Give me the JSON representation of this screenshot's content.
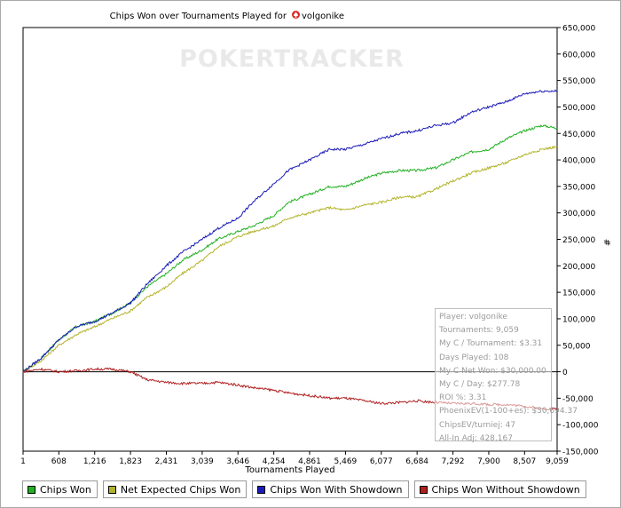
{
  "window": {
    "title_prefix": "Chips Won over Tournaments Played for",
    "player_name": "volgonike",
    "watermark": "POKERTRACKER"
  },
  "chart_data": {
    "type": "line",
    "title": "Chips Won over Tournaments Played for volgonike",
    "xlabel": "Tournaments Played",
    "ylabel": "#",
    "xlim": [
      1,
      9059
    ],
    "ylim": [
      -150000,
      650000
    ],
    "x_ticks": [
      1,
      608,
      1216,
      1823,
      2431,
      3039,
      3646,
      4254,
      4861,
      5469,
      6077,
      6684,
      7292,
      7900,
      8507,
      9059
    ],
    "x_tick_labels": [
      "1",
      "608",
      "1,216",
      "1,823",
      "2,431",
      "3,039",
      "3,646",
      "4,254",
      "4,861",
      "5,469",
      "6,077",
      "6,684",
      "7,292",
      "7,900",
      "8,507",
      "9,059"
    ],
    "y_ticks": [
      650000,
      600000,
      550000,
      500000,
      450000,
      400000,
      350000,
      300000,
      250000,
      200000,
      150000,
      100000,
      50000,
      0,
      -50000,
      -100000,
      -150000
    ],
    "y_tick_labels": [
      "650,000",
      "600,000",
      "550,000",
      "500,000",
      "450,000",
      "400,000",
      "350,000",
      "300,000",
      "250,000",
      "200,000",
      "150,000",
      "100,000",
      "50,000",
      "0",
      "-50,000",
      "-100,000",
      "-150,000"
    ],
    "x": [
      1,
      300,
      608,
      900,
      1216,
      1500,
      1823,
      2100,
      2431,
      2700,
      3039,
      3300,
      3646,
      3900,
      4254,
      4500,
      4861,
      5200,
      5469,
      5800,
      6077,
      6400,
      6684,
      7000,
      7292,
      7600,
      7900,
      8200,
      8507,
      8800,
      9059
    ],
    "series": [
      {
        "name": "Chips Won",
        "color": "#22b022",
        "values": [
          0,
          25000,
          60000,
          85000,
          95000,
          110000,
          130000,
          160000,
          185000,
          210000,
          230000,
          250000,
          265000,
          275000,
          295000,
          320000,
          335000,
          350000,
          350000,
          365000,
          375000,
          380000,
          380000,
          385000,
          400000,
          415000,
          420000,
          440000,
          455000,
          465000,
          460000
        ]
      },
      {
        "name": "Net Expected Chips Won",
        "color": "#b3b32a",
        "values": [
          0,
          20000,
          50000,
          70000,
          85000,
          100000,
          115000,
          140000,
          160000,
          185000,
          210000,
          235000,
          255000,
          265000,
          275000,
          290000,
          300000,
          310000,
          305000,
          315000,
          320000,
          330000,
          330000,
          345000,
          360000,
          375000,
          385000,
          395000,
          410000,
          420000,
          425000
        ]
      },
      {
        "name": "Chips Won With Showdown",
        "color": "#1a1ab8",
        "values": [
          0,
          25000,
          60000,
          85000,
          95000,
          110000,
          130000,
          165000,
          200000,
          225000,
          250000,
          270000,
          290000,
          320000,
          355000,
          380000,
          400000,
          420000,
          420000,
          430000,
          440000,
          450000,
          455000,
          465000,
          470000,
          490000,
          500000,
          510000,
          525000,
          530000,
          530000
        ]
      },
      {
        "name": "Chips Won Without Showdown",
        "color": "#b01e1e",
        "values": [
          0,
          5000,
          0,
          2000,
          5000,
          5000,
          0,
          -15000,
          -20000,
          -22000,
          -22000,
          -20000,
          -25000,
          -30000,
          -35000,
          -40000,
          -45000,
          -50000,
          -50000,
          -55000,
          -60000,
          -58000,
          -55000,
          -58000,
          -60000,
          -60000,
          -62000,
          -62000,
          -65000,
          -70000,
          -70000
        ]
      }
    ],
    "legend_position": "bottom-left"
  },
  "stats": {
    "player": "Player: volgonike",
    "tournaments": "Tournaments: 9,059",
    "my_c_per_tournament": "My C / Tournament: $3.31",
    "days_played": "Days Played: 108",
    "my_c_net_won": "My C Net Won: $30,000.00",
    "my_c_per_day": "My C / Day: $277.78",
    "roi": "ROI %: 3.31",
    "phoenix_ev": "PhoenixEV(1-100+es): $30,694.37",
    "chips_ev": "ChipsEV/turniej: 47",
    "all_in_adj": "All-In Adj: 428,167"
  }
}
